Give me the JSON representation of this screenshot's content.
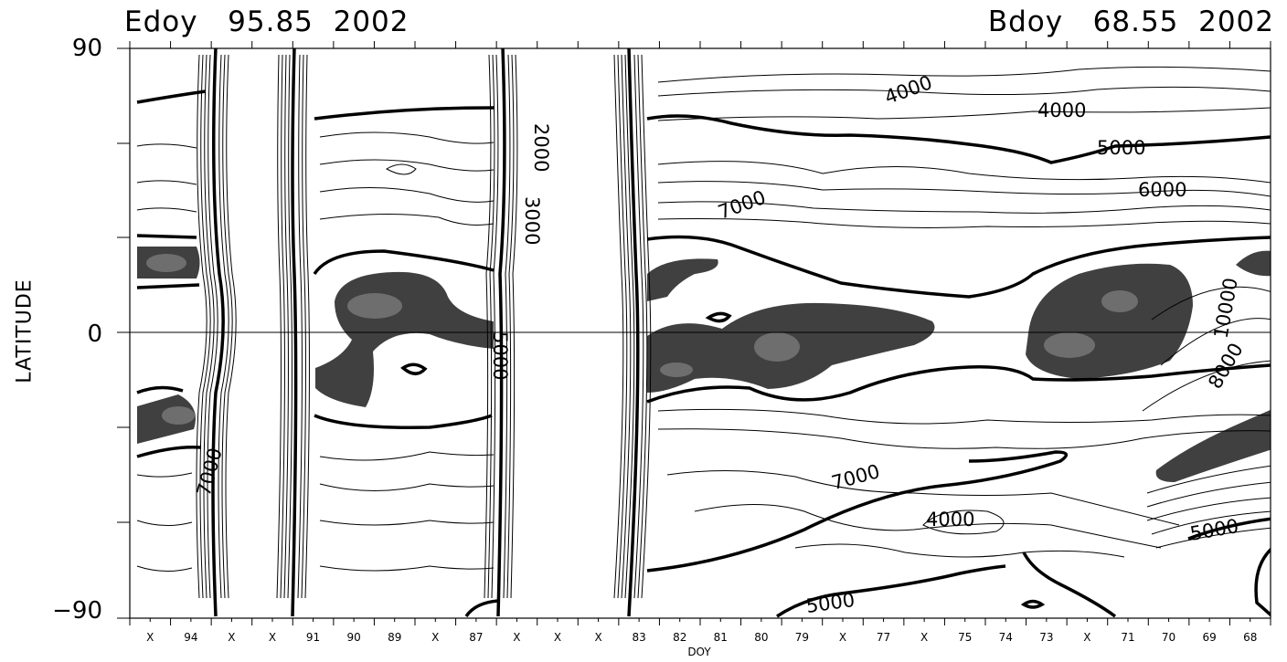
{
  "chart_data": {
    "type": "contour",
    "title_left": "Edoy   95.85  2002",
    "title_right": "Bdoy   68.55  2002",
    "ylabel": "LATITUDE",
    "xlabel": "DOY",
    "ylim": [
      -90,
      90
    ],
    "yticks": [
      "90",
      "0",
      "−90"
    ],
    "xticks": [
      "X",
      "94",
      "X",
      "X",
      "91",
      "90",
      "89",
      "X",
      "87",
      "X",
      "X",
      "X",
      "83",
      "82",
      "81",
      "80",
      "79",
      "X",
      "77",
      "X",
      "75",
      "74",
      "73",
      "X",
      "71",
      "70",
      "69",
      "68"
    ],
    "contour_labels": [
      {
        "text": "4000"
      },
      {
        "text": "4000"
      },
      {
        "text": "5000"
      },
      {
        "text": "6000"
      },
      {
        "text": "7000"
      },
      {
        "text": "7000"
      },
      {
        "text": "4000"
      },
      {
        "text": "5000"
      },
      {
        "text": "5000"
      },
      {
        "text": "5000"
      },
      {
        "text": "8000"
      },
      {
        "text": "10000"
      },
      {
        "text": "7000"
      },
      {
        "text": "2000"
      },
      {
        "text": "3000"
      }
    ],
    "colors": {
      "line": "#000000",
      "shade_dark": "#404040",
      "shade_light": "#6e6e6e",
      "background": "#ffffff"
    }
  }
}
